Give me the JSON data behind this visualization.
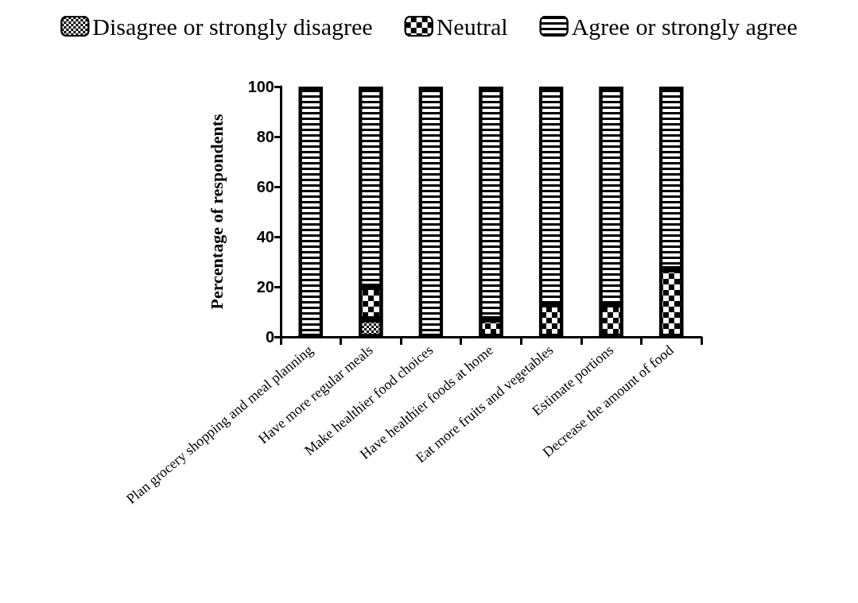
{
  "chart_data": {
    "type": "bar",
    "stacked": true,
    "ylabel": "Percentage of respondents",
    "categories": [
      "Plan grocery shopping and meal planning",
      "Have more regular meals",
      "Make healthier food choices",
      "Have healthier foods at home",
      "Eat more fruits and vegetables",
      "Estimate portions",
      "Decrease the amount of food"
    ],
    "series": [
      {
        "name": "Disagree or strongly disagree",
        "color": "#000000",
        "values": [
          0,
          7,
          0,
          0,
          0,
          0,
          0
        ]
      },
      {
        "name": "Neutral",
        "color": "#000000",
        "values": [
          0,
          13,
          0,
          7,
          13,
          13,
          27
        ]
      },
      {
        "name": "Agree or strongly agree",
        "color": "#000000",
        "values": [
          100,
          80,
          100,
          93,
          87,
          87,
          73
        ]
      }
    ],
    "ylim": [
      0,
      100
    ],
    "yticks": [
      0,
      20,
      40,
      60,
      80,
      100
    ],
    "grid": false,
    "legend": "top"
  }
}
